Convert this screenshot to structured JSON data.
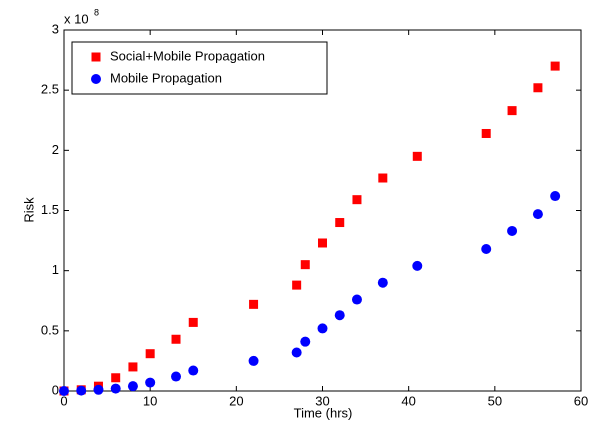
{
  "chart_data": {
    "type": "scatter",
    "x_label": "Time (hrs)",
    "y_label": "Risk",
    "y_multiplier": {
      "base": "x 10",
      "exponent": "8"
    },
    "x": [
      0,
      2,
      4,
      6,
      8,
      10,
      13,
      15,
      22,
      27,
      28,
      30,
      32,
      34,
      37,
      41,
      49,
      52,
      55,
      57
    ],
    "series": [
      {
        "name": "Social+Mobile Propagation",
        "color": "#ff0000",
        "marker": "square",
        "values": [
          0,
          0.01,
          0.04,
          0.11,
          0.2,
          0.31,
          0.43,
          0.57,
          0.72,
          0.88,
          1.05,
          1.23,
          1.4,
          1.59,
          1.77,
          1.95,
          2.14,
          2.33,
          2.52,
          2.7
        ]
      },
      {
        "name": "Mobile Propagation",
        "color": "#0000ff",
        "marker": "circle",
        "values": [
          0,
          0.003,
          0.01,
          0.02,
          0.04,
          0.07,
          0.12,
          0.17,
          0.25,
          0.32,
          0.41,
          0.52,
          0.63,
          0.76,
          0.9,
          1.04,
          1.18,
          1.33,
          1.47,
          1.62
        ]
      }
    ],
    "xlim": [
      0,
      60
    ],
    "xticks": [
      0,
      10,
      20,
      30,
      40,
      50,
      60
    ],
    "ylim": [
      0,
      3
    ],
    "yticks": [
      0,
      0.5,
      1,
      1.5,
      2,
      2.5,
      3
    ],
    "legend": "upper-left"
  }
}
